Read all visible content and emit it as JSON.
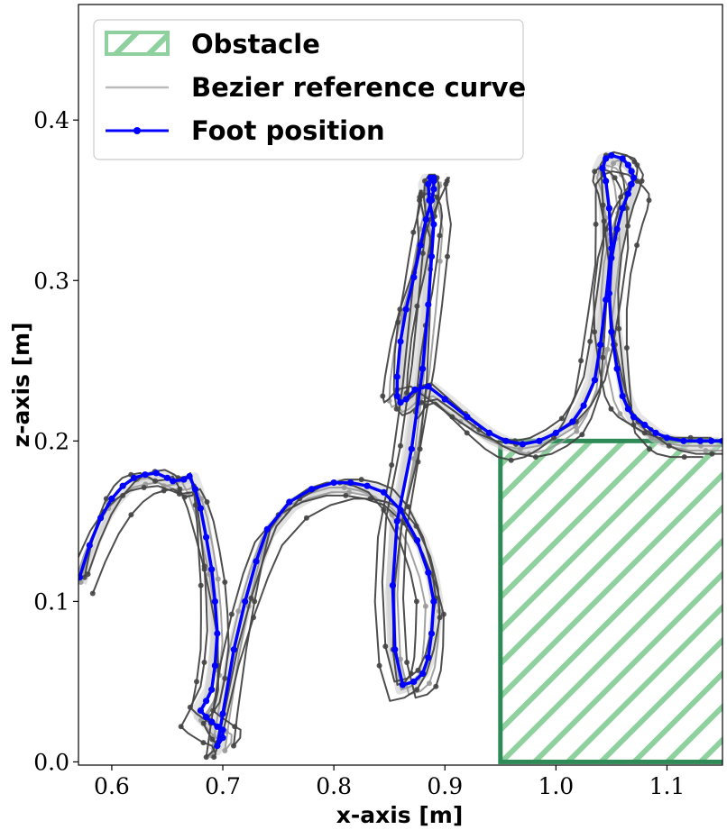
{
  "chart_data": {
    "type": "line",
    "xlabel": "x-axis [m]",
    "ylabel": "z-axis [m]",
    "xlim": [
      0.57,
      1.15
    ],
    "ylim": [
      -0.002,
      0.472
    ],
    "x_ticks": [
      0.6,
      0.7,
      0.8,
      0.9,
      1.0,
      1.1
    ],
    "x_tick_labels": [
      "0.6",
      "0.7",
      "0.8",
      "0.9",
      "1.0",
      "1.1"
    ],
    "y_ticks": [
      0.0,
      0.1,
      0.2,
      0.3,
      0.4
    ],
    "y_tick_labels": [
      "0.0",
      "0.1",
      "0.2",
      "0.3",
      "0.4"
    ],
    "grid": false,
    "legend_position": "top-left",
    "legend": [
      {
        "label": "Obstacle",
        "kind": "hatched-patch",
        "color": "#2e8b57"
      },
      {
        "label": "Bezier reference curve",
        "kind": "line",
        "color": "#bbbbbb"
      },
      {
        "label": "Foot position",
        "kind": "line-marker",
        "color": "#0000ff"
      }
    ],
    "obstacle": {
      "x": [
        0.95,
        1.15
      ],
      "z": [
        0.0,
        0.2
      ],
      "edge_color": "#2e8b57",
      "hatch_color": "#8fd19e"
    },
    "colors": {
      "foot": "#0000ff",
      "reference_light": "#cccccc",
      "reference_mid": "#999999",
      "reference_dark": "#444444"
    },
    "series": [
      {
        "name": "Foot position",
        "color": "#0000ff",
        "x": [
          0.571,
          0.58,
          0.59,
          0.6,
          0.61,
          0.62,
          0.63,
          0.64,
          0.65,
          0.655,
          0.665,
          0.67,
          0.675,
          0.68,
          0.685,
          0.69,
          0.693,
          0.695,
          0.693,
          0.69,
          0.685,
          0.68,
          0.685,
          0.69,
          0.695,
          0.7,
          0.7,
          0.695,
          0.7,
          0.71,
          0.72,
          0.73,
          0.74,
          0.76,
          0.78,
          0.8,
          0.815,
          0.83,
          0.845,
          0.86,
          0.875,
          0.885,
          0.89,
          0.888,
          0.885,
          0.88,
          0.872,
          0.862,
          0.855,
          0.853,
          0.857,
          0.87,
          0.88,
          0.885,
          0.888,
          0.89,
          0.886,
          0.885,
          0.887,
          0.89,
          0.89,
          0.89,
          0.888,
          0.883,
          0.878,
          0.872,
          0.865,
          0.86,
          0.857,
          0.857,
          0.86,
          0.865,
          0.873,
          0.885,
          0.9,
          0.92,
          0.94,
          0.955,
          0.97,
          0.985,
          1.0,
          1.015,
          1.025,
          1.035,
          1.04,
          1.045,
          1.05,
          1.048,
          1.045,
          1.042,
          1.045,
          1.05,
          1.06,
          1.065,
          1.068,
          1.07,
          1.068,
          1.065,
          1.06,
          1.055,
          1.05,
          1.048,
          1.05,
          1.055,
          1.06,
          1.065,
          1.07,
          1.08,
          1.09,
          1.1,
          1.115,
          1.13,
          1.14,
          1.15
        ],
        "y": [
          0.115,
          0.135,
          0.152,
          0.164,
          0.172,
          0.177,
          0.179,
          0.18,
          0.177,
          0.175,
          0.176,
          0.178,
          0.17,
          0.158,
          0.14,
          0.12,
          0.1,
          0.08,
          0.06,
          0.045,
          0.038,
          0.032,
          0.028,
          0.025,
          0.022,
          0.02,
          0.015,
          0.01,
          0.03,
          0.07,
          0.1,
          0.125,
          0.145,
          0.162,
          0.17,
          0.174,
          0.174,
          0.172,
          0.168,
          0.157,
          0.138,
          0.118,
          0.1,
          0.08,
          0.065,
          0.055,
          0.05,
          0.048,
          0.07,
          0.11,
          0.15,
          0.195,
          0.245,
          0.285,
          0.315,
          0.335,
          0.35,
          0.36,
          0.364,
          0.364,
          0.362,
          0.357,
          0.35,
          0.338,
          0.322,
          0.302,
          0.282,
          0.262,
          0.24,
          0.228,
          0.224,
          0.226,
          0.232,
          0.234,
          0.226,
          0.215,
          0.205,
          0.2,
          0.198,
          0.2,
          0.205,
          0.212,
          0.222,
          0.238,
          0.26,
          0.288,
          0.32,
          0.345,
          0.362,
          0.37,
          0.376,
          0.378,
          0.376,
          0.372,
          0.368,
          0.364,
          0.36,
          0.354,
          0.345,
          0.332,
          0.314,
          0.292,
          0.268,
          0.245,
          0.228,
          0.22,
          0.215,
          0.21,
          0.205,
          0.202,
          0.2,
          0.2,
          0.2,
          0.2
        ]
      }
    ]
  }
}
